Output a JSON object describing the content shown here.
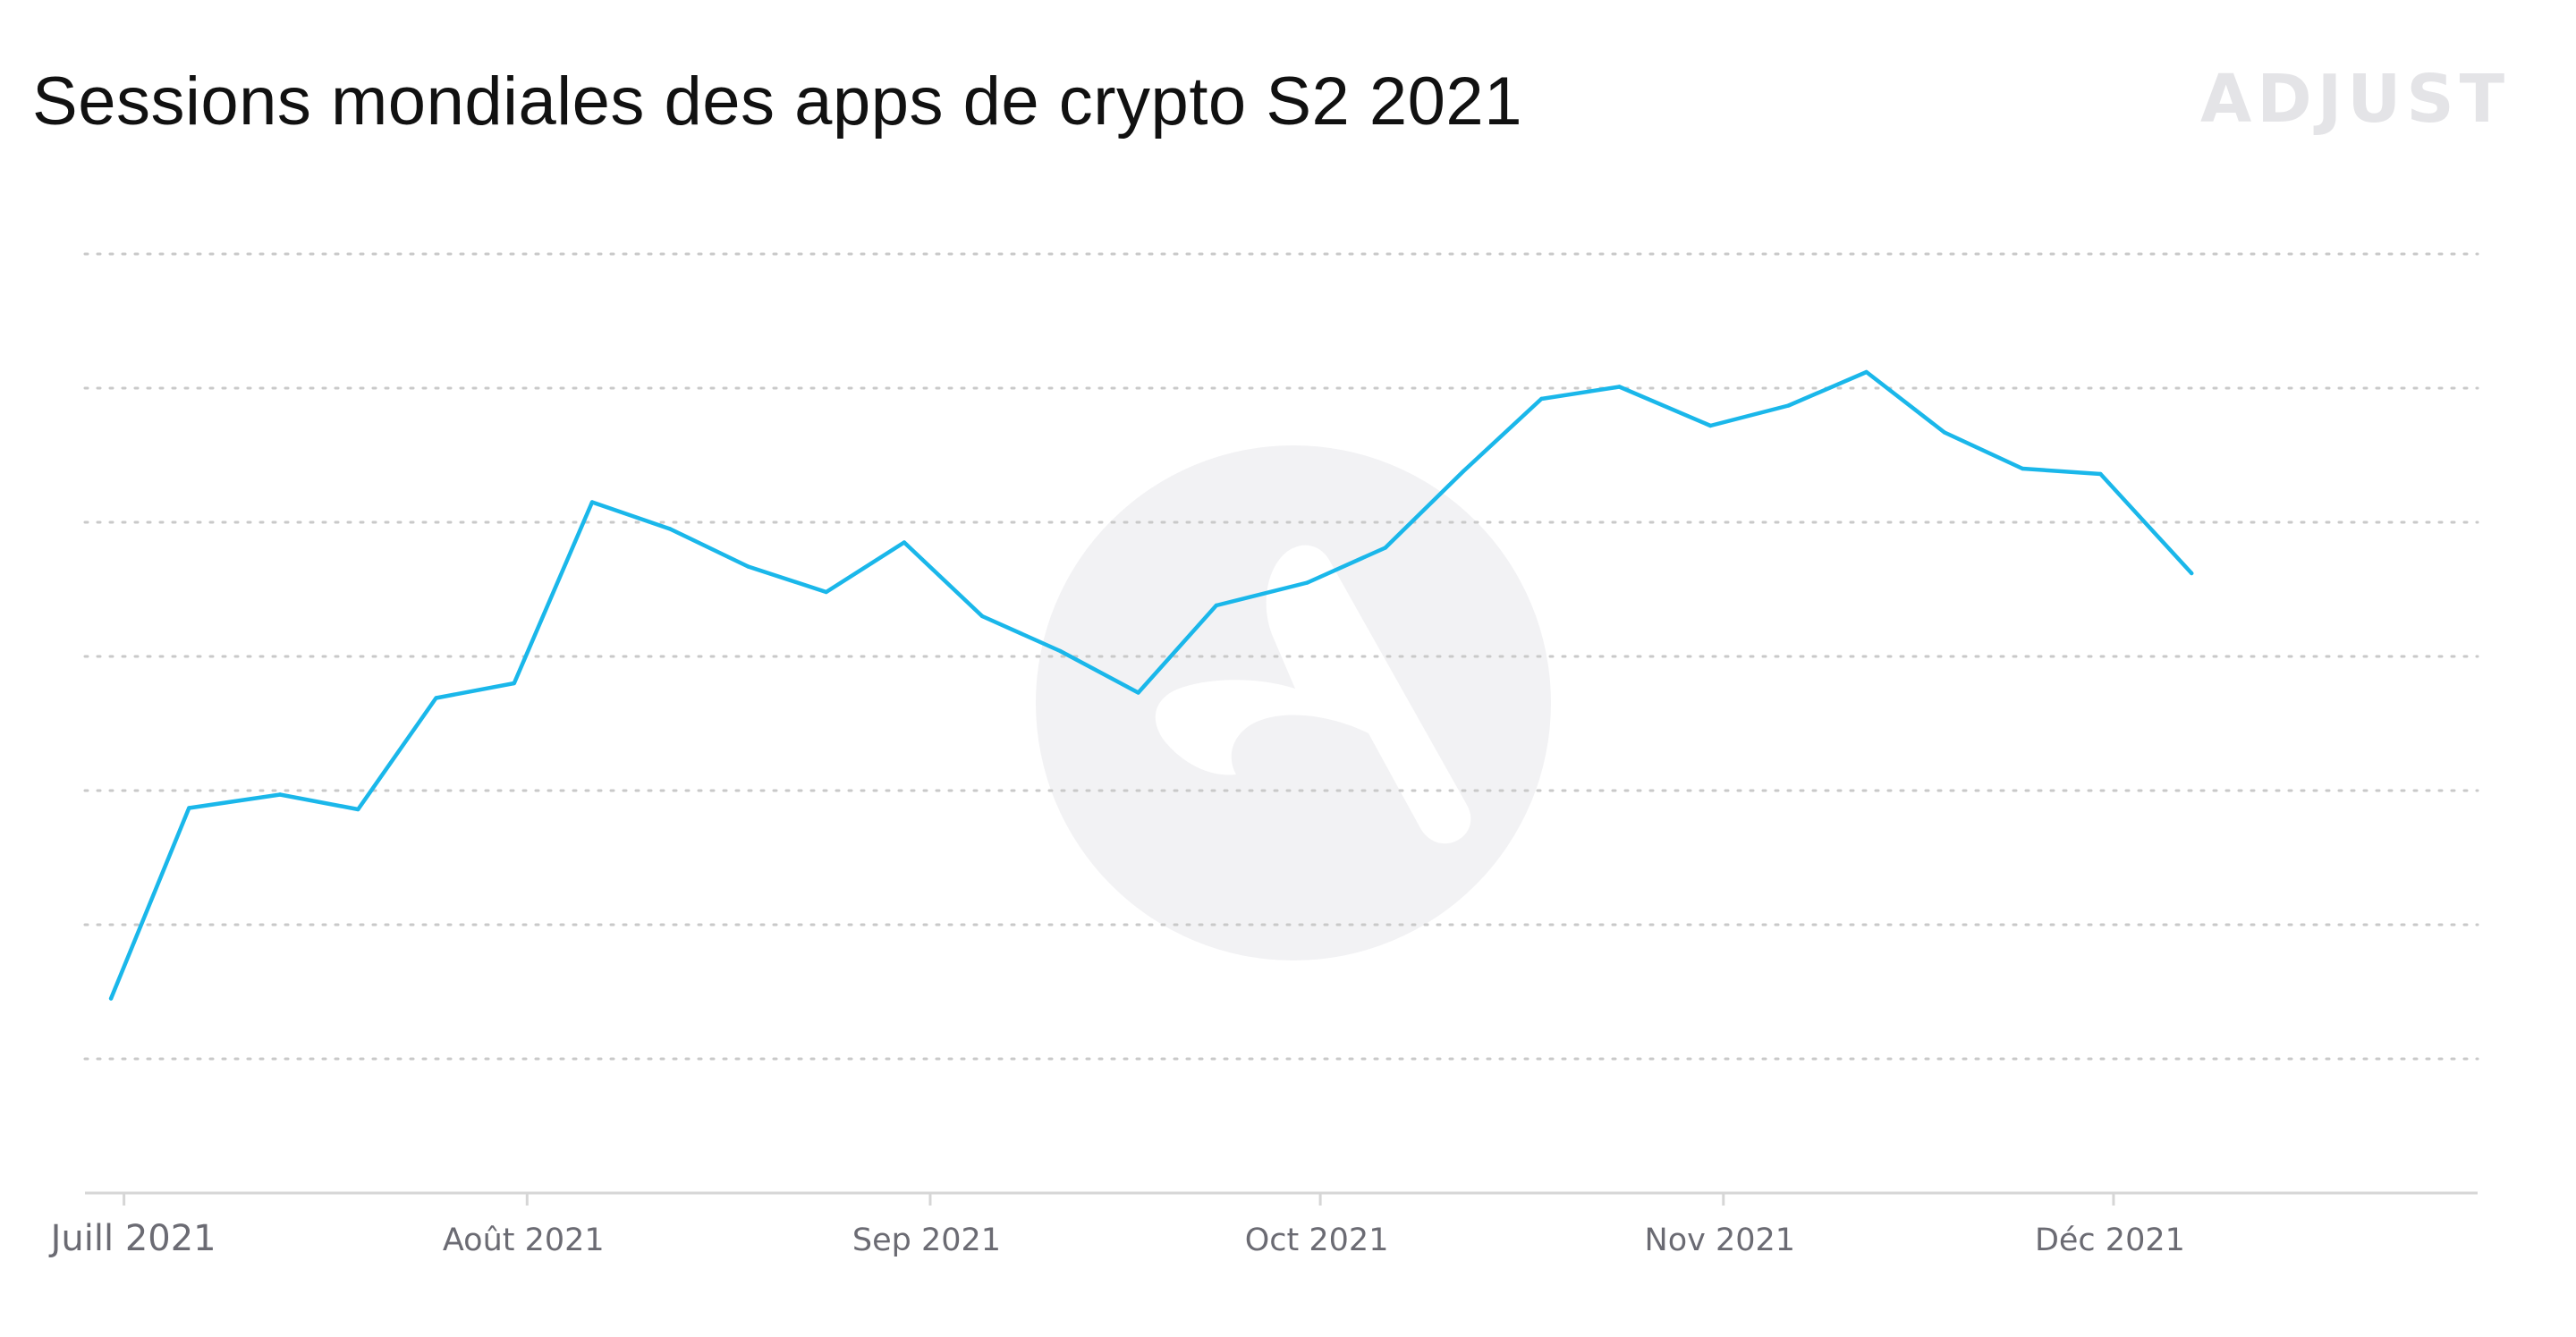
{
  "title": "Sessions mondiales des apps de crypto S2 2021",
  "brand": "ADJUST",
  "colors": {
    "line": "#1ab7ea",
    "grid": "#c9c9c9",
    "axis": "#d6d6d6",
    "watermark": "#f2f2f4",
    "title": "#111111",
    "tick": "#6b6b73"
  },
  "chart_data": {
    "type": "line",
    "title": "Sessions mondiales des apps de crypto S2 2021",
    "xlabel": "",
    "ylabel": "",
    "grid": true,
    "legend": "none",
    "y_axis_labels_shown": false,
    "ylim": [
      0,
      7
    ],
    "xlim": [
      "2021-06-28",
      "2021-12-29"
    ],
    "x_ticks": [
      {
        "date": "2021-07-01",
        "label": "Juill 2021"
      },
      {
        "date": "2021-08-01",
        "label": "Août 2021"
      },
      {
        "date": "2021-09-01",
        "label": "Sep 2021"
      },
      {
        "date": "2021-10-01",
        "label": "Oct 2021"
      },
      {
        "date": "2021-11-01",
        "label": "Nov 2021"
      },
      {
        "date": "2021-12-01",
        "label": "Déc 2021"
      }
    ],
    "series": [
      {
        "color": "#1ab7ea",
        "x": [
          "2021-06-30",
          "2021-07-06",
          "2021-07-13",
          "2021-07-19",
          "2021-07-25",
          "2021-07-31",
          "2021-08-06",
          "2021-08-12",
          "2021-08-18",
          "2021-08-24",
          "2021-08-30",
          "2021-09-05",
          "2021-09-11",
          "2021-09-17",
          "2021-09-23",
          "2021-09-30",
          "2021-10-06",
          "2021-10-12",
          "2021-10-18",
          "2021-10-24",
          "2021-10-31",
          "2021-11-06",
          "2021-11-12",
          "2021-11-18",
          "2021-11-24",
          "2021-11-30",
          "2021-12-07"
        ],
        "values": [
          1.45,
          2.87,
          2.97,
          2.86,
          3.69,
          3.8,
          5.15,
          4.95,
          4.67,
          4.48,
          4.85,
          4.3,
          4.04,
          3.73,
          4.38,
          4.55,
          4.81,
          5.38,
          5.92,
          6.01,
          5.72,
          5.87,
          6.12,
          5.67,
          5.4,
          5.36,
          4.62
        ]
      }
    ]
  }
}
